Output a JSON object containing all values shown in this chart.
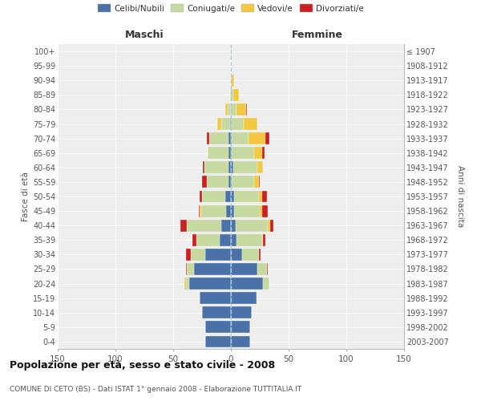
{
  "age_groups": [
    "0-4",
    "5-9",
    "10-14",
    "15-19",
    "20-24",
    "25-29",
    "30-34",
    "35-39",
    "40-44",
    "45-49",
    "50-54",
    "55-59",
    "60-64",
    "65-69",
    "70-74",
    "75-79",
    "80-84",
    "85-89",
    "90-94",
    "95-99",
    "100+"
  ],
  "birth_years": [
    "2003-2007",
    "1998-2002",
    "1993-1997",
    "1988-1992",
    "1983-1987",
    "1978-1982",
    "1973-1977",
    "1968-1972",
    "1963-1967",
    "1958-1962",
    "1953-1957",
    "1948-1952",
    "1943-1947",
    "1938-1942",
    "1933-1937",
    "1928-1932",
    "1923-1927",
    "1918-1922",
    "1913-1917",
    "1908-1912",
    "≤ 1907"
  ],
  "maschi": {
    "celibi": [
      22,
      22,
      25,
      27,
      36,
      32,
      22,
      10,
      8,
      4,
      5,
      2,
      2,
      2,
      2,
      1,
      0,
      0,
      0,
      0,
      0
    ],
    "coniugati": [
      0,
      0,
      0,
      0,
      3,
      6,
      13,
      20,
      30,
      22,
      20,
      19,
      21,
      18,
      17,
      7,
      3,
      1,
      0,
      0,
      0
    ],
    "vedovi": [
      0,
      0,
      0,
      0,
      1,
      0,
      0,
      0,
      0,
      1,
      0,
      0,
      0,
      0,
      0,
      4,
      2,
      0,
      0,
      0,
      0
    ],
    "divorziati": [
      0,
      0,
      0,
      0,
      0,
      1,
      4,
      3,
      6,
      1,
      2,
      4,
      1,
      0,
      2,
      0,
      0,
      0,
      0,
      0,
      0
    ]
  },
  "femmine": {
    "nubili": [
      17,
      17,
      18,
      22,
      28,
      23,
      10,
      5,
      4,
      3,
      3,
      1,
      2,
      1,
      1,
      0,
      0,
      0,
      0,
      0,
      0
    ],
    "coniugate": [
      0,
      0,
      0,
      1,
      5,
      8,
      14,
      22,
      28,
      22,
      21,
      19,
      21,
      19,
      14,
      11,
      5,
      2,
      1,
      0,
      0
    ],
    "vedove": [
      0,
      0,
      0,
      0,
      0,
      0,
      0,
      1,
      2,
      2,
      3,
      4,
      5,
      7,
      15,
      12,
      8,
      5,
      2,
      0,
      1
    ],
    "divorziate": [
      0,
      0,
      0,
      0,
      0,
      1,
      2,
      2,
      3,
      5,
      4,
      1,
      0,
      2,
      3,
      0,
      1,
      0,
      0,
      0,
      0
    ]
  },
  "colors": {
    "celibi": "#4a72a8",
    "coniugati": "#c5d9a0",
    "vedovi": "#f5c842",
    "divorziati": "#cc2020"
  },
  "title": "Popolazione per età, sesso e stato civile - 2008",
  "subtitle": "COMUNE DI CETO (BS) - Dati ISTAT 1° gennaio 2008 - Elaborazione TUTTITALIA.IT",
  "xlabel_left": "Maschi",
  "xlabel_right": "Femmine",
  "ylabel_left": "Fasce di età",
  "ylabel_right": "Anni di nascita",
  "xlim": 150,
  "legend_labels": [
    "Celibi/Nubili",
    "Coniugati/e",
    "Vedovi/e",
    "Divorziati/e"
  ],
  "background_color": "#ffffff",
  "grid_color": "#cccccc",
  "bar_bg_color": "#eeeeee"
}
